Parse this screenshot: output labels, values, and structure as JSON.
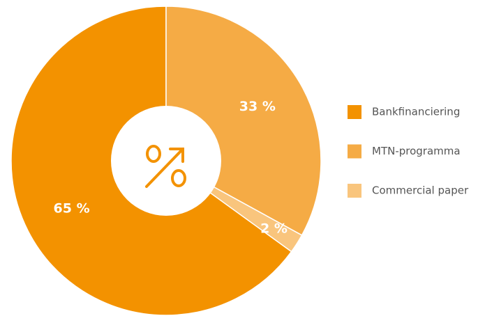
{
  "chart_data": {
    "type": "donut",
    "categories": [
      "Bankfinanciering",
      "MTN-programma",
      "Commercial paper"
    ],
    "values": [
      65,
      33,
      2
    ],
    "value_labels": [
      "65 %",
      "33 %",
      "2 %"
    ],
    "colors": [
      "#f39200",
      "#f5ab45",
      "#f9c57d"
    ],
    "legend": "right"
  }
}
